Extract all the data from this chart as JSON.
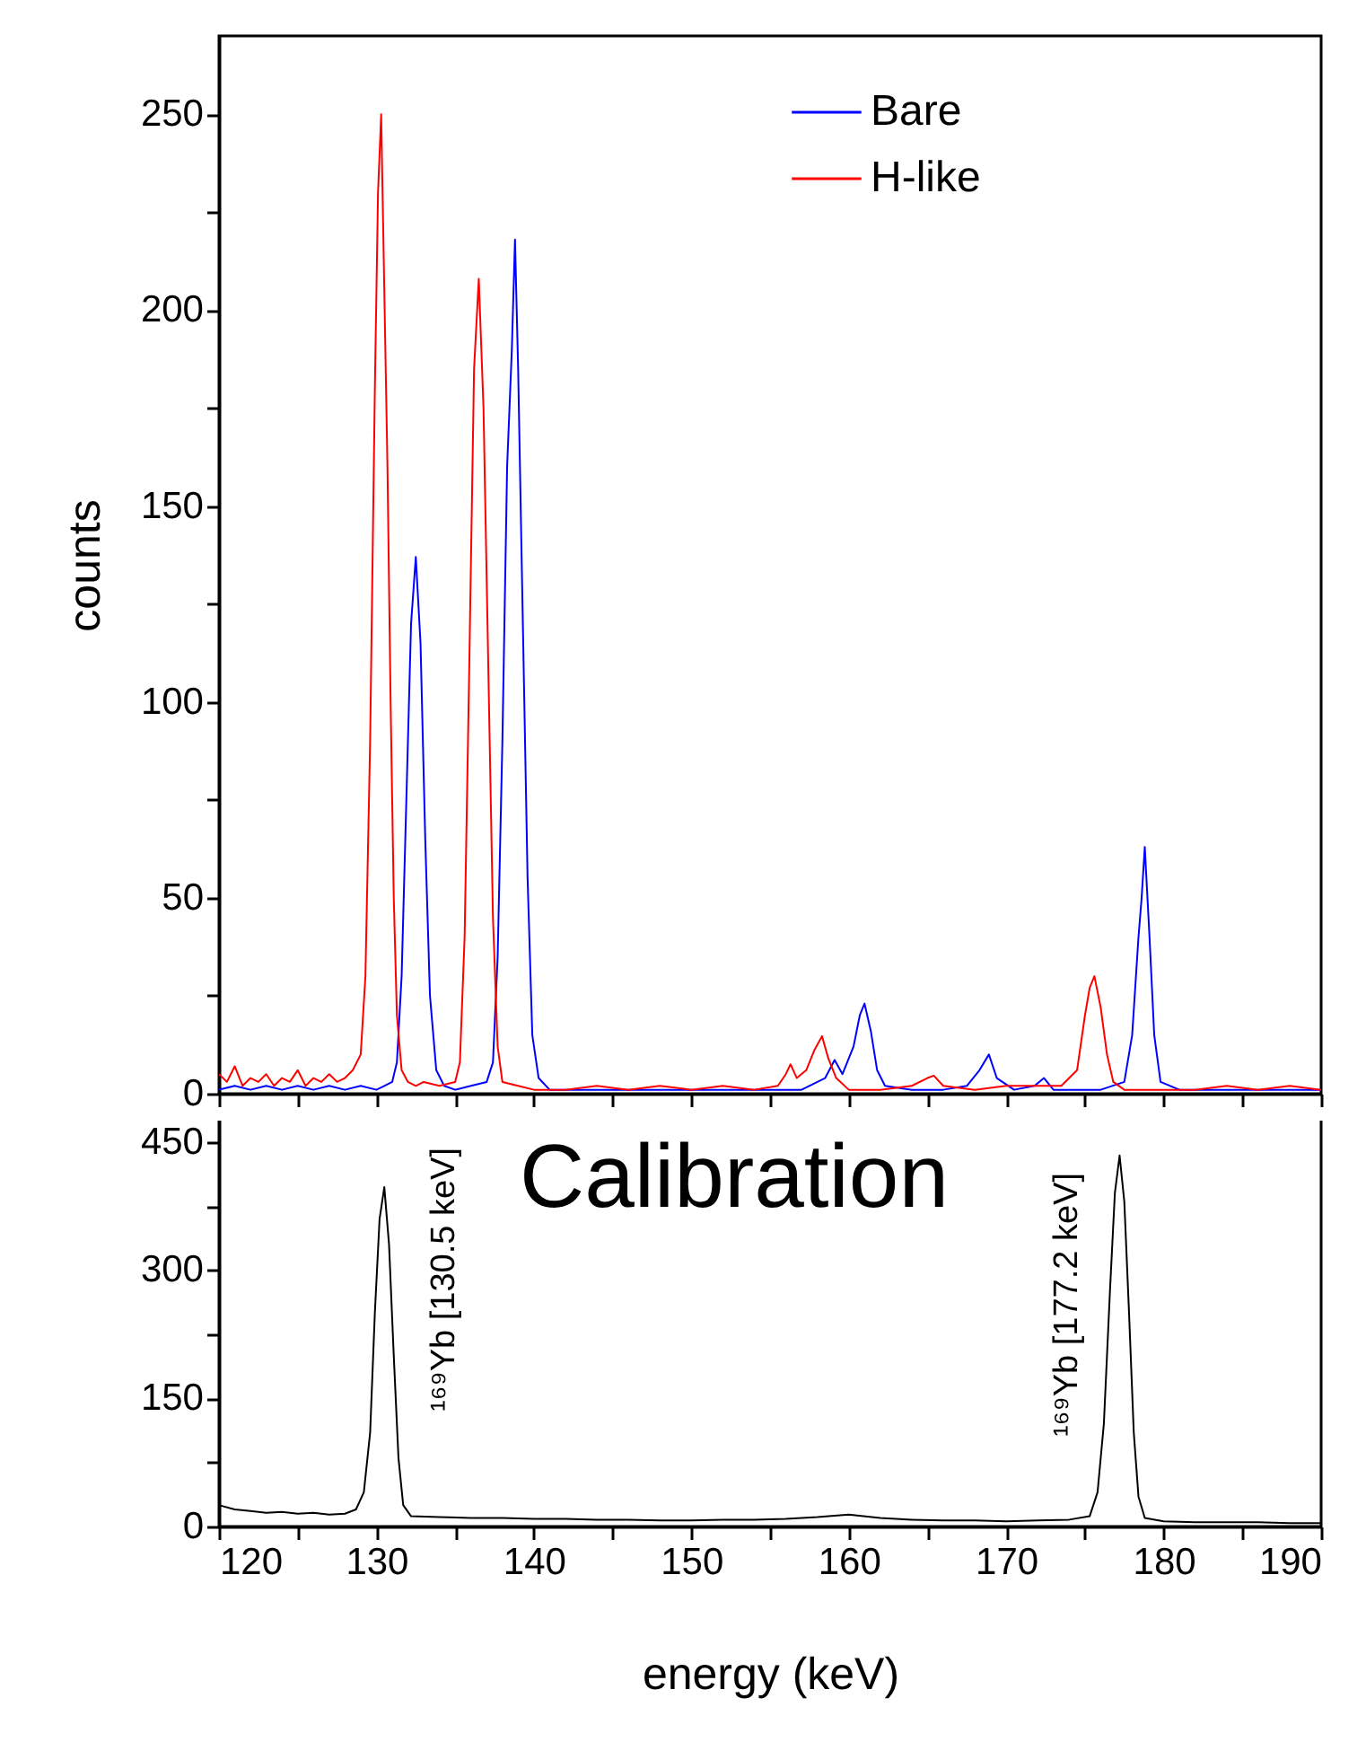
{
  "chart_data": [
    {
      "type": "line",
      "ylabel": "counts",
      "xlim": [
        120,
        190
      ],
      "ylim": [
        0,
        270
      ],
      "xticks": [
        120,
        {
          "value": 125,
          "label": null
        },
        130,
        {
          "value": 135,
          "label": null
        },
        140,
        {
          "value": 145,
          "label": null
        },
        150,
        {
          "value": 155,
          "label": null
        },
        160,
        {
          "value": 165,
          "label": null
        },
        170,
        {
          "value": 175,
          "label": null
        },
        180,
        {
          "value": 185,
          "label": null
        },
        190
      ],
      "yticks": [
        0,
        {
          "value": 25,
          "label": null
        },
        50,
        {
          "value": 75,
          "label": null
        },
        100,
        {
          "value": 125,
          "label": null
        },
        150,
        {
          "value": 175,
          "label": null
        },
        200,
        {
          "value": 225,
          "label": null
        },
        250
      ],
      "tick_labels": "y",
      "legend": "top right",
      "series": [
        {
          "name": "Bare",
          "color": "#0000ff",
          "x": [
            120,
            121,
            122,
            123,
            124,
            125,
            126,
            127,
            128,
            129,
            130,
            130.5,
            131,
            131.3,
            131.6,
            131.9,
            132.2,
            132.5,
            132.8,
            133.1,
            133.4,
            133.8,
            134.3,
            135,
            136,
            137,
            137.4,
            137.7,
            138,
            138.3,
            138.6,
            138.8,
            139,
            139.3,
            139.6,
            139.9,
            140.3,
            141,
            143,
            145,
            147,
            149,
            151,
            153,
            155,
            157,
            158.5,
            159.1,
            159.6,
            160.3,
            160.7,
            161,
            161.4,
            161.8,
            162.3,
            164,
            166,
            167.5,
            168.3,
            168.9,
            169.4,
            170.5,
            171.8,
            172.4,
            173,
            174,
            176,
            177.5,
            178,
            178.4,
            178.6,
            178.8,
            179.1,
            179.4,
            179.8,
            181,
            183,
            185,
            187,
            190
          ],
          "values": [
            1,
            2,
            1,
            2,
            1,
            2,
            1,
            2,
            1,
            2,
            1,
            2,
            3,
            8,
            30,
            75,
            120,
            137,
            115,
            65,
            25,
            6,
            2,
            1,
            2,
            3,
            8,
            35,
            90,
            160,
            190,
            218,
            185,
            120,
            55,
            15,
            4,
            1,
            1,
            1,
            1,
            1,
            1,
            1,
            1,
            1,
            4,
            8.6,
            5,
            12,
            20,
            23,
            16,
            6,
            2,
            1,
            1,
            2,
            6,
            10,
            4,
            1,
            2,
            4,
            1,
            1,
            1,
            3,
            15,
            40,
            50,
            63,
            40,
            15,
            3,
            1,
            1,
            1,
            1,
            1
          ]
        },
        {
          "name": "H-like",
          "color": "#ff0000",
          "x": [
            120,
            120.5,
            121,
            121.5,
            122,
            122.5,
            123,
            123.5,
            124,
            124.5,
            125,
            125.5,
            126,
            126.5,
            127,
            127.5,
            128,
            128.5,
            129,
            129.3,
            129.6,
            129.9,
            130.1,
            130.3,
            130.5,
            130.7,
            130.9,
            131.1,
            131.3,
            131.6,
            132,
            132.5,
            133,
            134,
            135,
            135.3,
            135.6,
            135.9,
            136.2,
            136.5,
            136.8,
            137.1,
            137.4,
            137.7,
            138,
            139,
            140,
            142,
            144,
            146,
            148,
            150,
            152,
            154,
            155.5,
            156,
            156.3,
            156.7,
            157.3,
            157.8,
            158.3,
            158.7,
            159.2,
            160,
            162,
            164,
            165,
            165.4,
            166,
            168,
            170,
            172,
            173.5,
            174.5,
            175,
            175.3,
            175.6,
            176,
            176.4,
            176.8,
            177.5,
            180,
            182,
            184,
            186,
            188,
            190
          ],
          "values": [
            5,
            3,
            7,
            2,
            4,
            3,
            5,
            2,
            4,
            3,
            6,
            2,
            4,
            3,
            5,
            3,
            4,
            6,
            10,
            30,
            90,
            180,
            230,
            250,
            205,
            160,
            100,
            50,
            20,
            6,
            3,
            2,
            3,
            2,
            3,
            8,
            40,
            110,
            185,
            208,
            175,
            110,
            45,
            12,
            3,
            2,
            1,
            1,
            2,
            1,
            2,
            1,
            2,
            1,
            2,
            5,
            7.5,
            4,
            6,
            11,
            14.7,
            9,
            4,
            1,
            1,
            2,
            4,
            4.6,
            2,
            1,
            2,
            2,
            2,
            6,
            20,
            27,
            30,
            22,
            10,
            3,
            1,
            1,
            1,
            2,
            1,
            2,
            1
          ]
        }
      ]
    },
    {
      "type": "line",
      "xlabel": "energy (keV)",
      "xlim": [
        120,
        190
      ],
      "ylim": [
        0,
        500
      ],
      "xticks": [
        120,
        {
          "value": 125,
          "label": null
        },
        130,
        {
          "value": 135,
          "label": null
        },
        140,
        {
          "value": 145,
          "label": null
        },
        150,
        {
          "value": 155,
          "label": null
        },
        160,
        {
          "value": 165,
          "label": null
        },
        170,
        {
          "value": 175,
          "label": null
        },
        180,
        {
          "value": 185,
          "label": null
        },
        190
      ],
      "yticks": [
        0,
        {
          "value": 75,
          "label": null
        },
        150,
        {
          "value": 225,
          "label": null
        },
        300,
        {
          "value": 375,
          "label": null
        },
        450
      ],
      "annotations": [
        "Calibration",
        "¹⁶⁹Yb [130.5 keV]",
        "¹⁶⁹Yb [177.2 keV]"
      ],
      "series": [
        {
          "color": "#000000",
          "x": [
            120,
            121,
            122,
            123,
            124,
            125,
            126,
            127,
            128,
            128.7,
            129.2,
            129.6,
            129.9,
            130.2,
            130.5,
            130.8,
            131.1,
            131.4,
            131.7,
            132.2,
            134,
            136,
            138,
            140,
            142,
            144,
            146,
            148,
            150,
            152,
            154,
            156,
            158,
            160,
            162,
            164,
            166,
            168,
            170,
            172,
            174,
            175.3,
            175.8,
            176.2,
            176.6,
            176.9,
            177.2,
            177.5,
            177.8,
            178.1,
            178.4,
            178.8,
            180,
            182,
            184,
            186,
            188,
            190
          ],
          "values": [
            25,
            20,
            18,
            16,
            17,
            15,
            16,
            14,
            15,
            20,
            40,
            110,
            250,
            360,
            397,
            330,
            200,
            80,
            25,
            12,
            11,
            10,
            10,
            9,
            9,
            8,
            8,
            7,
            7,
            8,
            8,
            9,
            11,
            14,
            10,
            8,
            7,
            7,
            6,
            7,
            8,
            12,
            40,
            120,
            280,
            390,
            434,
            380,
            250,
            110,
            35,
            10,
            6,
            5,
            5,
            5,
            4,
            4
          ]
        }
      ]
    }
  ]
}
